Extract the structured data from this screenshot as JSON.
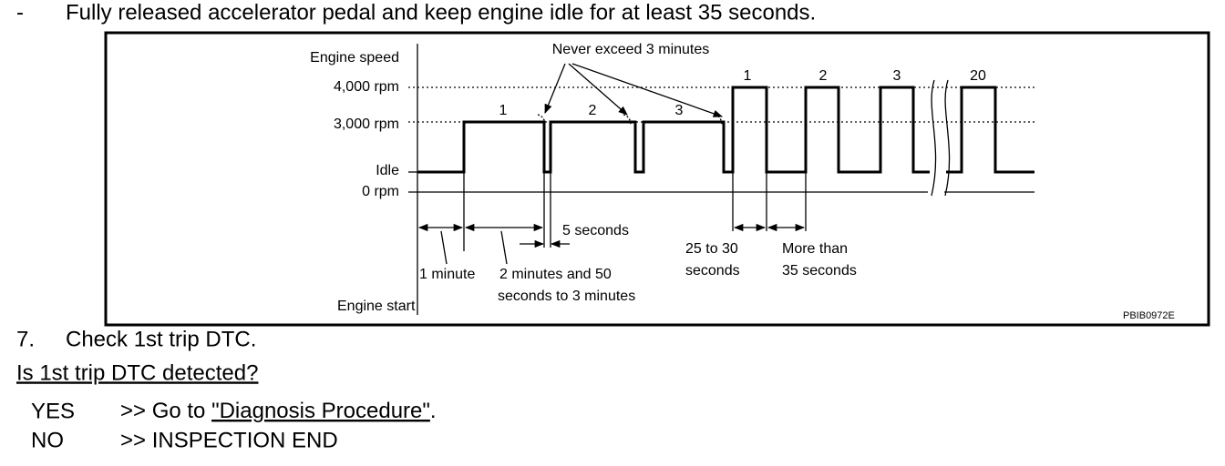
{
  "intro": {
    "bullet": "-",
    "text": "Fully released accelerator pedal and keep engine idle for at least 35 seconds."
  },
  "figure": {
    "axis_title": "Engine speed",
    "levels": [
      "4,000 rpm",
      "3,000 rpm",
      "Idle",
      "0 rpm"
    ],
    "note": "Never exceed 3 minutes",
    "segment_labels": [
      "1",
      "2",
      "3"
    ],
    "pulse_labels": [
      "1",
      "2",
      "3",
      "20"
    ],
    "one_minute": "1 minute",
    "long_period": [
      "2 minutes and 50",
      "seconds to 3 minutes"
    ],
    "five_seconds": "5 seconds",
    "pulse_time": [
      "25 to 30",
      "seconds"
    ],
    "gap_time": [
      "More than",
      "35 seconds"
    ],
    "engine_start": "Engine start",
    "code": "PBIB0972E"
  },
  "step": {
    "number": "7.",
    "text": "Check 1st trip DTC."
  },
  "question": "Is 1st trip DTC detected?",
  "answers": [
    {
      "label": "YES",
      "text": ">> Go to ",
      "link": "\"Diagnosis Procedure\"",
      "end": "."
    },
    {
      "label": "NO",
      "text": ">> INSPECTION END"
    }
  ]
}
